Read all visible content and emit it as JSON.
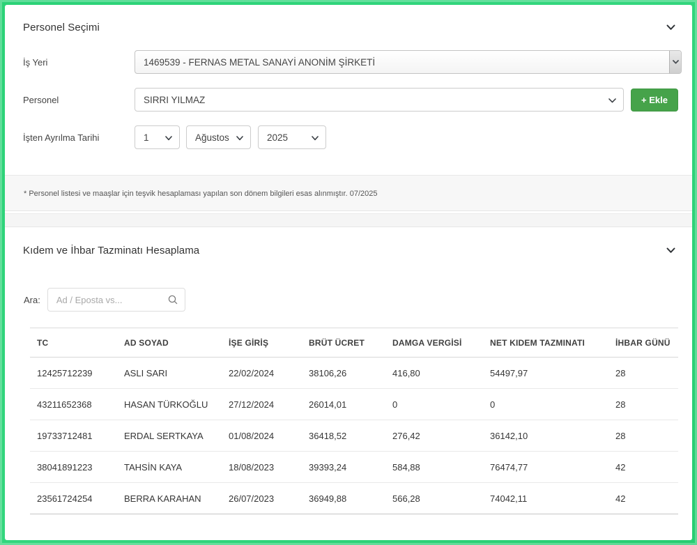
{
  "colors": {
    "frame_green": "#2bd277",
    "button_green": "#46a34a"
  },
  "personel_secimi": {
    "title": "Personel Seçimi",
    "is_yeri": {
      "label": "İş Yeri",
      "value": "1469539 - FERNAS METAL SANAYİ ANONİM ŞİRKETİ"
    },
    "personel": {
      "label": "Personel",
      "value": "SIRRI YILMAZ"
    },
    "ekle_button_label": "+ Ekle",
    "isten_ayrilma": {
      "label": "İşten Ayrılma Tarihi",
      "day": "1",
      "month": "Ağustos",
      "year": "2025"
    },
    "note": "* Personel listesi ve maaşlar için teşvik hesaplaması yapılan son dönem bilgileri esas alınmıştır. 07/2025"
  },
  "kidem_hesaplama": {
    "title": "Kıdem ve İhbar Tazminatı Hesaplama",
    "search": {
      "label": "Ara:",
      "placeholder": "Ad / Eposta vs..."
    },
    "table": {
      "columns": [
        "TC",
        "AD SOYAD",
        "İŞE GİRİŞ",
        "BRÜT ÜCRET",
        "DAMGA VERGİSİ",
        "NET KIDEM TAZMINATI",
        "İHBAR GÜNÜ"
      ],
      "rows": [
        [
          "12425712239",
          "ASLI SARI",
          "22/02/2024",
          "38106,26",
          "416,80",
          "54497,97",
          "28"
        ],
        [
          "43211652368",
          "HASAN TÜRKOĞLU",
          "27/12/2024",
          "26014,01",
          "0",
          "0",
          "28"
        ],
        [
          "19733712481",
          "ERDAL SERTKAYA",
          "01/08/2024",
          "36418,52",
          "276,42",
          "36142,10",
          "28"
        ],
        [
          "38041891223",
          "TAHSİN KAYA",
          "18/08/2023",
          "39393,24",
          "584,88",
          "76474,77",
          "42"
        ],
        [
          "23561724254",
          "BERRA KARAHAN",
          "26/07/2023",
          "36949,88",
          "566,28",
          "74042,11",
          "42"
        ]
      ]
    }
  },
  "icons": {
    "section_collapse": "chevron-down-icon",
    "select_caret": "caret-down-icon",
    "search": "search-icon"
  }
}
